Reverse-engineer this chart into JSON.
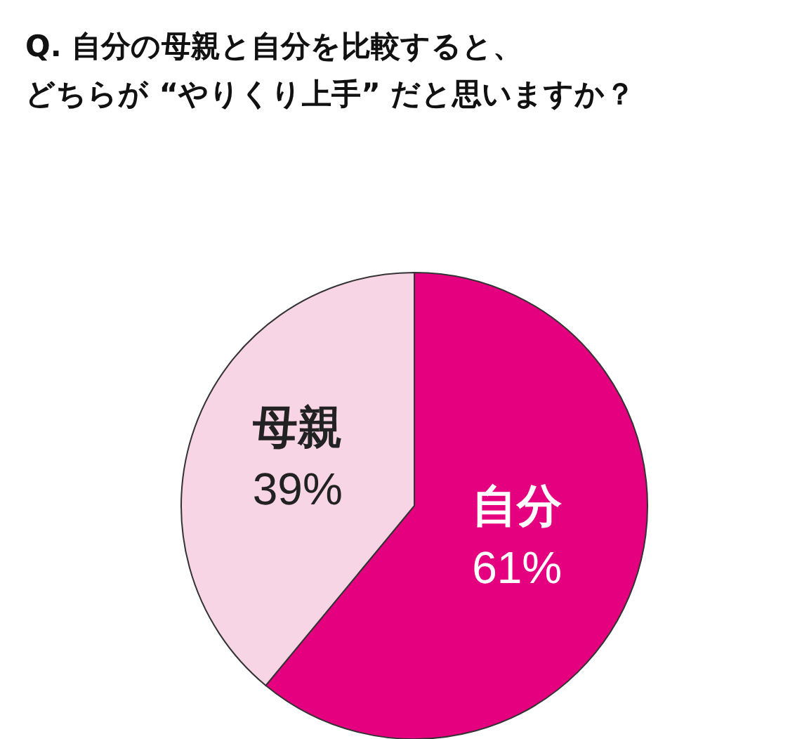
{
  "chart_data": {
    "type": "pie",
    "title": "Q. 自分の母親と自分を比較すると、どちらが “やりくり上手” だと思いますか？",
    "categories": [
      "自分",
      "母親"
    ],
    "values": [
      61,
      39
    ],
    "colors": [
      "#e4007f",
      "#f8d5e5"
    ],
    "value_labels": [
      "61%",
      "39%"
    ]
  }
}
